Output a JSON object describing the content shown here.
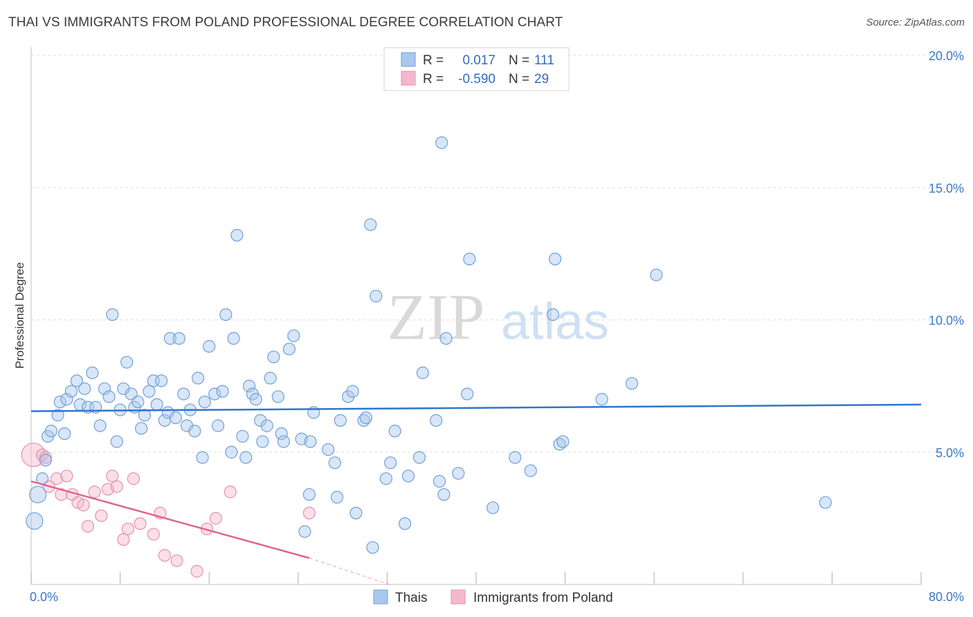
{
  "title": "THAI VS IMMIGRANTS FROM POLAND PROFESSIONAL DEGREE CORRELATION CHART",
  "source": "Source: ZipAtlas.com",
  "watermark": {
    "zip": "ZIP",
    "atlas": "atlas"
  },
  "colors": {
    "thais_fill": "#a9c8ee",
    "thais_stroke": "#6f9fd8",
    "thais_line": "#2f74cc",
    "poland_fill": "#f5b7cb",
    "poland_stroke": "#e88fab",
    "poland_line": "#e0648f",
    "tick_label": "#3b78c3",
    "grid": "#dcdcdc"
  },
  "legend": {
    "rows": [
      {
        "r_label": "R =",
        "r_value": "0.017",
        "n_label": "N =",
        "n_value": "111"
      },
      {
        "r_label": "R =",
        "r_value": "-0.590",
        "n_label": "N =",
        "n_value": "29"
      }
    ]
  },
  "bottom_legend": [
    "Thais",
    "Immigrants from Poland"
  ],
  "chart_data": {
    "type": "scatter",
    "title": "THAI VS IMMIGRANTS FROM POLAND PROFESSIONAL DEGREE CORRELATION CHART",
    "xlabel": "",
    "ylabel": "Professional Degree",
    "xlim": [
      0,
      80
    ],
    "ylim": [
      0,
      20
    ],
    "x_tick_labels": [
      "0.0%",
      "80.0%"
    ],
    "y_ticks": [
      5,
      10,
      15,
      20
    ],
    "y_tick_labels": [
      "5.0%",
      "10.0%",
      "15.0%",
      "20.0%"
    ],
    "grid": true,
    "series": [
      {
        "name": "Thais",
        "r": 0.017,
        "n": 111,
        "trend": {
          "x": [
            0,
            80
          ],
          "y": [
            6.55,
            6.8
          ]
        },
        "points": [
          [
            0.3,
            2.4
          ],
          [
            0.6,
            3.4
          ],
          [
            1.0,
            4.0
          ],
          [
            1.3,
            4.7
          ],
          [
            1.5,
            5.6
          ],
          [
            1.8,
            5.8
          ],
          [
            2.4,
            6.4
          ],
          [
            2.6,
            6.9
          ],
          [
            3.0,
            5.7
          ],
          [
            3.2,
            7.0
          ],
          [
            3.6,
            7.3
          ],
          [
            4.1,
            7.7
          ],
          [
            4.4,
            6.8
          ],
          [
            4.8,
            7.4
          ],
          [
            5.1,
            6.7
          ],
          [
            5.5,
            8.0
          ],
          [
            5.8,
            6.7
          ],
          [
            6.2,
            6.0
          ],
          [
            6.6,
            7.4
          ],
          [
            7.0,
            7.1
          ],
          [
            7.3,
            10.2
          ],
          [
            7.7,
            5.4
          ],
          [
            8.0,
            6.6
          ],
          [
            8.3,
            7.4
          ],
          [
            8.6,
            8.4
          ],
          [
            9.0,
            7.2
          ],
          [
            9.3,
            6.7
          ],
          [
            9.6,
            6.9
          ],
          [
            9.9,
            5.9
          ],
          [
            10.2,
            6.4
          ],
          [
            10.6,
            7.3
          ],
          [
            11.0,
            7.7
          ],
          [
            11.3,
            6.8
          ],
          [
            11.7,
            7.7
          ],
          [
            12.0,
            6.2
          ],
          [
            12.3,
            6.5
          ],
          [
            12.5,
            9.3
          ],
          [
            13.0,
            6.3
          ],
          [
            13.3,
            9.3
          ],
          [
            13.7,
            7.2
          ],
          [
            14.0,
            6.0
          ],
          [
            14.3,
            6.6
          ],
          [
            14.7,
            5.8
          ],
          [
            15.0,
            7.8
          ],
          [
            15.4,
            4.8
          ],
          [
            15.6,
            6.9
          ],
          [
            16.0,
            9.0
          ],
          [
            16.5,
            7.2
          ],
          [
            16.8,
            6.0
          ],
          [
            17.2,
            7.3
          ],
          [
            17.5,
            10.2
          ],
          [
            18.0,
            5.0
          ],
          [
            18.2,
            9.3
          ],
          [
            18.5,
            13.2
          ],
          [
            19.0,
            5.6
          ],
          [
            19.3,
            4.8
          ],
          [
            19.6,
            7.5
          ],
          [
            19.9,
            7.2
          ],
          [
            20.2,
            7.0
          ],
          [
            20.6,
            6.2
          ],
          [
            20.8,
            5.4
          ],
          [
            21.2,
            6.0
          ],
          [
            21.5,
            7.8
          ],
          [
            21.8,
            8.6
          ],
          [
            22.2,
            7.1
          ],
          [
            22.5,
            5.7
          ],
          [
            22.7,
            5.4
          ],
          [
            23.2,
            8.9
          ],
          [
            23.6,
            9.4
          ],
          [
            24.3,
            5.5
          ],
          [
            25.1,
            5.4
          ],
          [
            25.0,
            3.4
          ],
          [
            24.6,
            2.0
          ],
          [
            25.4,
            6.5
          ],
          [
            26.7,
            5.1
          ],
          [
            27.3,
            4.6
          ],
          [
            27.5,
            3.3
          ],
          [
            27.8,
            6.2
          ],
          [
            28.5,
            7.1
          ],
          [
            28.9,
            7.3
          ],
          [
            29.2,
            2.7
          ],
          [
            29.9,
            6.2
          ],
          [
            30.1,
            6.3
          ],
          [
            30.5,
            13.6
          ],
          [
            30.7,
            1.4
          ],
          [
            31.0,
            10.9
          ],
          [
            31.9,
            4.0
          ],
          [
            32.3,
            4.6
          ],
          [
            32.7,
            5.8
          ],
          [
            33.6,
            2.3
          ],
          [
            33.9,
            4.1
          ],
          [
            34.9,
            4.8
          ],
          [
            35.2,
            8.0
          ],
          [
            36.4,
            6.2
          ],
          [
            36.7,
            3.9
          ],
          [
            36.9,
            16.7
          ],
          [
            37.1,
            3.4
          ],
          [
            37.3,
            9.3
          ],
          [
            38.4,
            4.2
          ],
          [
            39.2,
            7.2
          ],
          [
            39.4,
            12.3
          ],
          [
            41.5,
            2.9
          ],
          [
            43.5,
            4.8
          ],
          [
            44.9,
            4.3
          ],
          [
            46.9,
            10.2
          ],
          [
            47.1,
            12.3
          ],
          [
            47.5,
            5.3
          ],
          [
            47.8,
            5.4
          ],
          [
            51.3,
            7.0
          ],
          [
            54.0,
            7.6
          ],
          [
            56.2,
            11.7
          ],
          [
            71.4,
            3.1
          ]
        ],
        "sizes": {
          "0.3,2.4": "large",
          "0.6,3.4": "large",
          "1.0,4.0": "large"
        }
      },
      {
        "name": "Immigrants from Poland",
        "r": -0.59,
        "n": 29,
        "trend": {
          "x": [
            0,
            25
          ],
          "y": [
            3.9,
            1.0
          ],
          "dashed_extension": {
            "x": [
              25,
              32.2
            ],
            "y": [
              1.0,
              0.0
            ]
          }
        },
        "points": [
          [
            0.2,
            4.9
          ],
          [
            1.0,
            4.9
          ],
          [
            1.3,
            4.8
          ],
          [
            1.6,
            3.7
          ],
          [
            2.3,
            4.0
          ],
          [
            2.7,
            3.4
          ],
          [
            3.2,
            4.1
          ],
          [
            3.7,
            3.4
          ],
          [
            4.2,
            3.1
          ],
          [
            4.7,
            3.0
          ],
          [
            5.1,
            2.2
          ],
          [
            5.7,
            3.5
          ],
          [
            6.3,
            2.6
          ],
          [
            6.9,
            3.6
          ],
          [
            7.3,
            4.1
          ],
          [
            7.7,
            3.7
          ],
          [
            8.3,
            1.7
          ],
          [
            8.7,
            2.1
          ],
          [
            9.2,
            4.0
          ],
          [
            9.8,
            2.3
          ],
          [
            11.0,
            1.9
          ],
          [
            11.6,
            2.7
          ],
          [
            12.0,
            1.1
          ],
          [
            13.1,
            0.9
          ],
          [
            14.9,
            0.5
          ],
          [
            15.8,
            2.1
          ],
          [
            16.6,
            2.5
          ],
          [
            17.9,
            3.5
          ],
          [
            25.0,
            2.7
          ]
        ]
      }
    ]
  }
}
